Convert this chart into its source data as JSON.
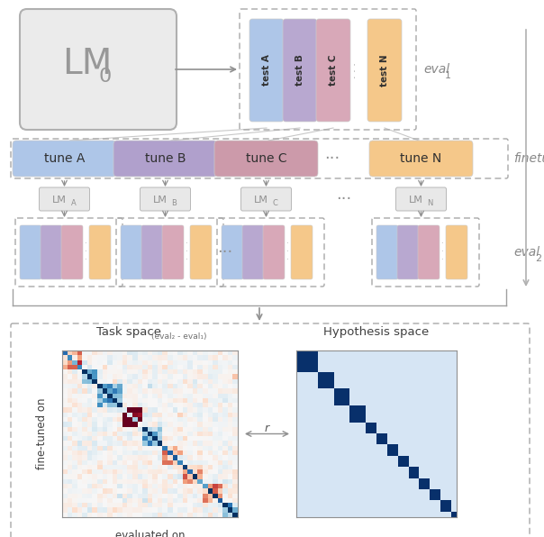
{
  "bg_color": "#ffffff",
  "test_colors": [
    "#aec6e8",
    "#b8a8d0",
    "#d8a8b8",
    "#f5c88a"
  ],
  "test_labels": [
    "test A",
    "test B",
    "test C",
    "test N"
  ],
  "tune_colors": [
    "#aec6e8",
    "#b0a0cc",
    "#cc9aaa",
    "#f5c88a"
  ],
  "tune_labels": [
    "tune A",
    "tune B",
    "tune C",
    "tune N"
  ],
  "lm_subs": [
    "A",
    "B",
    "C",
    "N"
  ],
  "lm_box_color": "#e8e8e8",
  "lm_box_edge": "#b8b8b8",
  "dashed_color": "#a8a8a8",
  "arrow_color": "#909090",
  "text_color": "#606060",
  "eval_label_color": "#888888",
  "dark_blue": "#1a3a6e",
  "hyp_bg": "#f0f4fa"
}
